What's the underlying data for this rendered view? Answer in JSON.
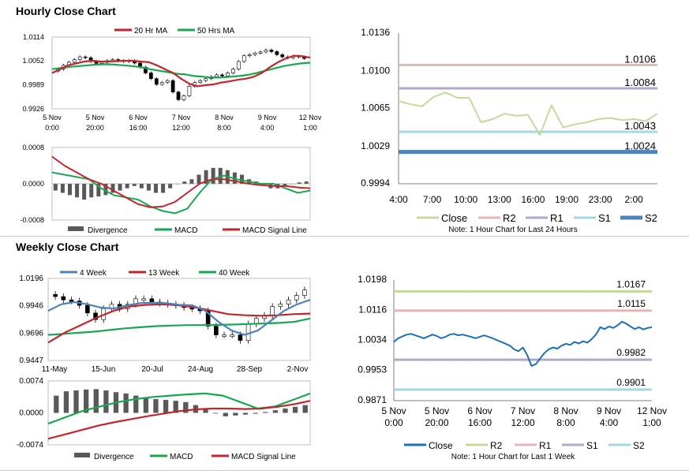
{
  "sections": {
    "hourly_title": "Hourly Close Chart",
    "weekly_title": "Weekly Close Chart"
  },
  "colors": {
    "close_hourly": "#c6d99a",
    "r2": "#e5b5b5",
    "r1": "#b4a7c9",
    "s1": "#a6d6e0",
    "s2": "#4f81bd",
    "ma20": "#c0272d",
    "ma50": "#1aa652",
    "week4": "#4f81bd",
    "week13": "#c0272d",
    "week40": "#1aa652",
    "close_weekly": "#1f6fb5",
    "r2_weekly": "#c6d99a",
    "r1_weekly": "#e5b5b5",
    "s1_weekly": "#b4a7c9",
    "s2_weekly": "#a6d6e0",
    "macd": "#1aa652",
    "signal": "#c0272d",
    "divergence": "#595959"
  },
  "chart_data": [
    {
      "id": "hourly-candles",
      "type": "candlestick",
      "legend": [
        "20 Hr MA",
        "50 Hrs MA"
      ],
      "y_ticks": [
        "1.0114",
        "1.0052",
        "0.9989",
        "0.9926"
      ],
      "ylim": [
        0.9926,
        1.0114
      ],
      "x_ticks": [
        [
          "5 Nov",
          "0:00"
        ],
        [
          "5 Nov",
          "20:00"
        ],
        [
          "6 Nov",
          "16:00"
        ],
        [
          "7 Nov",
          "12:00"
        ],
        [
          "8 Nov",
          "8:00"
        ],
        [
          "9 Nov",
          "4:00"
        ],
        [
          "12 Nov",
          "1:00"
        ]
      ],
      "close": [
        1.003,
        1.004,
        1.0048,
        1.0055,
        1.0062,
        1.006,
        1.005,
        1.0045,
        1.0048,
        1.0052,
        1.0055,
        1.0052,
        1.005,
        1.0052,
        1.0046,
        1.0035,
        1.002,
        1.0005,
        0.999,
        0.9995,
        1.0,
        0.997,
        0.995,
        0.996,
        0.9985,
        0.9995,
        1.0,
        1.0005,
        1.001,
        1.0015,
        1.0012,
        1.002,
        1.003,
        1.005,
        1.0065,
        1.0068,
        1.0072,
        1.0075,
        1.008,
        1.0076,
        1.0068,
        1.0062,
        1.006,
        1.0064,
        1.0062,
        1.0058
      ],
      "ma20": [
        1.002,
        1.003,
        1.004,
        1.0045,
        1.005,
        1.0052,
        1.005,
        1.005,
        1.0051,
        1.0052,
        1.0052,
        1.005,
        1.0048,
        1.004,
        1.003,
        1.002,
        1.0005,
        0.9992,
        0.9985,
        0.9988,
        0.999,
        0.9995,
        0.9998,
        1.0002,
        1.0005,
        1.001,
        1.002,
        1.0035,
        1.0048,
        1.0058,
        1.0065,
        1.0064,
        1.006
      ],
      "ma50": [
        1.003,
        1.0033,
        1.0036,
        1.0038,
        1.004,
        1.0042,
        1.0043,
        1.0042,
        1.004,
        1.0038,
        1.0035,
        1.003,
        1.0026,
        1.0022,
        1.0018,
        1.0016,
        1.0012,
        1.001,
        1.0008,
        1.0008,
        1.001,
        1.0012,
        1.0015,
        1.002,
        1.0026,
        1.0032,
        1.0038,
        1.0042,
        1.0045,
        1.0047
      ]
    },
    {
      "id": "hourly-macd",
      "type": "bar+line",
      "legend": [
        "Divergence",
        "MACD",
        "MACD Signal Line"
      ],
      "y_ticks": [
        "0.0008",
        "0.0000",
        "-0.0008"
      ],
      "ylim": [
        -0.0008,
        0.0008
      ],
      "divergence": [
        -0.00015,
        -0.0002,
        -0.00025,
        -0.0003,
        -0.00035,
        -0.0003,
        -0.00028,
        -0.00025,
        -0.0002,
        -0.00015,
        -0.0001,
        -5e-05,
        -0.0001,
        -0.00015,
        -0.0002,
        -0.0002,
        -0.0001,
        0.0,
        5e-05,
        0.0001,
        0.0002,
        0.0003,
        0.00035,
        0.00035,
        0.0003,
        0.00025,
        0.0002,
        0.0001,
        5e-05,
        0.0,
        -0.0001,
        -0.0001,
        -5e-05,
        0.0,
        3e-05,
        5e-05
      ],
      "macd": [
        0.00025,
        0.0002,
        0.00015,
        0.0001,
        -0.0001,
        -0.00025,
        -0.0003,
        -0.00035,
        -0.0005,
        -0.0006,
        -0.00065,
        -0.00055,
        -0.0002,
        0.0001,
        0.00018,
        0.0001,
        5e-05,
        0.0,
        0.0,
        -0.0001,
        -0.0002,
        -0.00015
      ],
      "signal": [
        0.0006,
        0.0004,
        0.00025,
        0.0001,
        0.0,
        -0.00015,
        -0.0003,
        -0.00045,
        -0.00052,
        -0.0005,
        -0.0004,
        -0.0002,
        0.0,
        0.0001,
        0.0001,
        5e-05,
        0.0,
        -3e-05,
        -5e-05,
        -5e-05,
        -8e-05,
        -0.0001
      ]
    },
    {
      "id": "hourly-levels",
      "type": "line",
      "legend": [
        "Close",
        "R2",
        "R1",
        "S1",
        "S2"
      ],
      "note": "Note: 1 Hour Chart for Last 24 Hours",
      "y_ticks": [
        "1.0136",
        "1.0100",
        "1.0065",
        "1.0029",
        "0.9994"
      ],
      "ylim": [
        0.9994,
        1.0136
      ],
      "x_ticks": [
        "4:00",
        "7:00",
        "10:00",
        "13:00",
        "16:00",
        "19:00",
        "23:00",
        "2:00"
      ],
      "close": [
        1.0072,
        1.0069,
        1.0067,
        1.0076,
        1.008,
        1.0075,
        1.0075,
        1.0052,
        1.0055,
        1.006,
        1.0058,
        1.0059,
        1.004,
        1.0068,
        1.0047,
        1.005,
        1.0052,
        1.0055,
        1.0056,
        1.0054,
        1.0055,
        1.0053,
        1.006
      ],
      "levels": {
        "R2": 1.0106,
        "R1": 1.0084,
        "S1": 1.0043,
        "S2": 1.0024
      },
      "level_labels": [
        "1.0106",
        "1.0084",
        "1.0043",
        "1.0024"
      ]
    },
    {
      "id": "weekly-candles",
      "type": "candlestick",
      "legend": [
        "4 Week",
        "13 Week",
        "40 Week"
      ],
      "y_ticks": [
        "1.0196",
        "0.9946",
        "0.9696",
        "0.9447"
      ],
      "ylim": [
        0.9447,
        1.0196
      ],
      "x_ticks": [
        "11-May",
        "15-Jun",
        "20-Jul",
        "24-Aug",
        "28-Sep",
        "2-Nov"
      ],
      "close": [
        1.003,
        1.0,
        0.999,
        0.995,
        0.988,
        0.982,
        0.992,
        0.996,
        0.992,
        0.996,
        1.001,
        1.001,
        0.998,
        0.997,
        0.996,
        0.995,
        0.993,
        0.992,
        0.99,
        0.976,
        0.968,
        0.968,
        0.968,
        0.963,
        0.978,
        0.983,
        0.986,
        0.994,
        0.996,
        1.0,
        1.004,
        1.009
      ],
      "w4": [
        0.99,
        0.996,
        0.998,
        0.996,
        0.993,
        0.992,
        0.995,
        0.997,
        0.9975,
        0.997,
        0.9955,
        0.995,
        0.99,
        0.98,
        0.972,
        0.968,
        0.972,
        0.981,
        0.99,
        0.996,
        1.0
      ],
      "w13": [
        0.961,
        0.97,
        0.977,
        0.984,
        0.99,
        0.994,
        0.9955,
        0.996,
        0.995,
        0.993,
        0.99,
        0.987,
        0.986,
        0.9855,
        0.986,
        0.987,
        0.9875
      ],
      "w40": [
        0.968,
        0.969,
        0.97,
        0.971,
        0.9725,
        0.974,
        0.975,
        0.976,
        0.9765,
        0.977,
        0.977,
        0.9772,
        0.9775,
        0.978,
        0.9785,
        0.979,
        0.98,
        0.983
      ]
    },
    {
      "id": "weekly-macd",
      "type": "bar+line",
      "legend": [
        "Divergence",
        "MACD",
        "MACD Signal Line"
      ],
      "y_ticks": [
        "0.0074",
        "0.0000",
        "-0.0074"
      ],
      "ylim": [
        -0.0074,
        0.0074
      ],
      "divergence": [
        0.004,
        0.005,
        0.0052,
        0.0054,
        0.0055,
        0.0052,
        0.0048,
        0.0045,
        0.004,
        0.0036,
        0.0032,
        0.003,
        0.0028,
        0.0025,
        0.0018,
        0.001,
        0.0,
        -0.0008,
        -0.0006,
        -0.0004,
        -0.0002,
        0.0002,
        0.0006,
        0.001,
        0.0014,
        0.0018
      ],
      "macd": [
        -0.0025,
        -0.001,
        0.0005,
        0.0015,
        0.0025,
        0.0032,
        0.0037,
        0.004,
        0.0043,
        0.0045,
        0.004,
        0.0025,
        0.001,
        0.0015,
        0.003,
        0.0045
      ],
      "signal": [
        -0.006,
        -0.005,
        -0.004,
        -0.003,
        -0.0022,
        -0.0015,
        -0.0008,
        -0.0002,
        0.0004,
        0.0008,
        0.001,
        0.001,
        0.0009,
        0.001,
        0.0014,
        0.002,
        0.0028
      ]
    },
    {
      "id": "weekly-levels",
      "type": "line",
      "legend": [
        "Close",
        "R2",
        "R1",
        "S1",
        "S2"
      ],
      "note": "Note: 1 Hour Chart for Last 1 Week",
      "y_ticks": [
        "1.0198",
        "1.0116",
        "1.0034",
        "0.9953",
        "0.9871"
      ],
      "ylim": [
        0.9871,
        1.0198
      ],
      "x_ticks": [
        [
          "5 Nov",
          "0:00"
        ],
        [
          "5 Nov",
          "20:00"
        ],
        [
          "6 Nov",
          "16:00"
        ],
        [
          "7 Nov",
          "12:00"
        ],
        [
          "8 Nov",
          "8:00"
        ],
        [
          "9 Nov",
          "4:00"
        ],
        [
          "12 Nov",
          "1:00"
        ]
      ],
      "close": [
        1.003,
        1.004,
        1.0045,
        1.005,
        1.0052,
        1.0048,
        1.0044,
        1.004,
        1.0045,
        1.005,
        1.0046,
        1.004,
        1.0044,
        1.005,
        1.0052,
        1.0048,
        1.005,
        1.0047,
        1.0044,
        1.004,
        1.0044,
        1.0048,
        1.0044,
        1.004,
        1.0035,
        1.003,
        1.0025,
        1.002,
        1.001,
        1.0005,
        1.0015,
        0.9995,
        0.9965,
        0.997,
        0.9985,
        1.0,
        1.001,
        1.0015,
        1.0012,
        1.002,
        1.0025,
        1.0022,
        1.003,
        1.0026,
        1.0032,
        1.0028,
        1.0038,
        1.005,
        1.007,
        1.0065,
        1.0072,
        1.0068,
        1.0075,
        1.0085,
        1.008,
        1.0072,
        1.0065,
        1.007,
        1.0064,
        1.0068,
        1.007
      ],
      "levels": {
        "R2": 1.0167,
        "R1": 1.0115,
        "S1": 0.9982,
        "S2": 0.9901
      },
      "level_labels": [
        "1.0167",
        "1.0115",
        "0.9982",
        "0.9901"
      ]
    }
  ]
}
